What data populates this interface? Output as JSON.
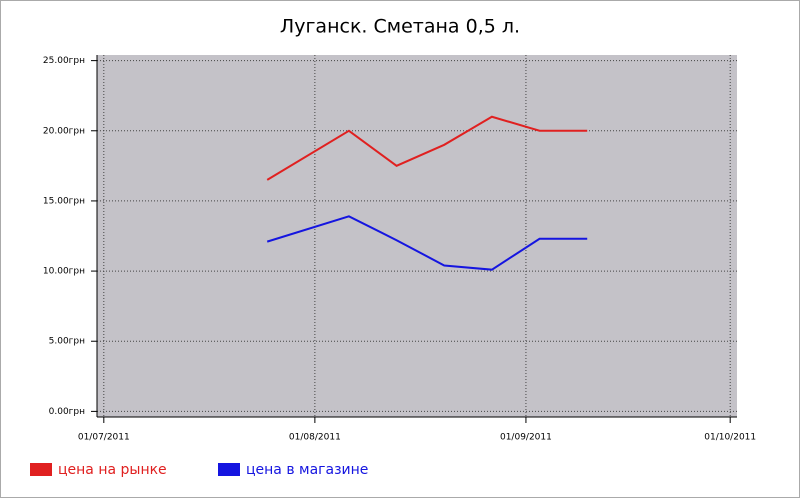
{
  "chart_data": {
    "type": "line",
    "title": "Луганск. Сметана 0,5 л.",
    "x": [
      "25/07/2011",
      "06/08/2011",
      "13/08/2011",
      "20/08/2011",
      "27/08/2011",
      "03/09/2011",
      "10/09/2011"
    ],
    "series": [
      {
        "name": "цена на рынке",
        "color": "#e02020",
        "values": [
          16.5,
          20,
          17.5,
          19,
          21,
          20,
          20
        ]
      },
      {
        "name": "цена в магазине",
        "color": "#1515e0",
        "values": [
          12.1,
          13.9,
          12.2,
          10.4,
          10.1,
          12.3,
          12.3
        ]
      }
    ],
    "xlim": [
      "30/06/2011",
      "02/10/2011"
    ],
    "xticks": [
      "01/07/2011",
      "01/08/2011",
      "01/09/2011",
      "01/10/2011"
    ],
    "ylim": [
      -0.4,
      25.4
    ],
    "yticks": [
      {
        "value": 0,
        "label": "0.00грн"
      },
      {
        "value": 5,
        "label": "5.00грн"
      },
      {
        "value": 10,
        "label": "10.00грн"
      },
      {
        "value": 15,
        "label": "15.00грн"
      },
      {
        "value": 20,
        "label": "20.00грн"
      },
      {
        "value": 25,
        "label": "25.00грн"
      }
    ],
    "grid": true,
    "legend": "bottom"
  }
}
